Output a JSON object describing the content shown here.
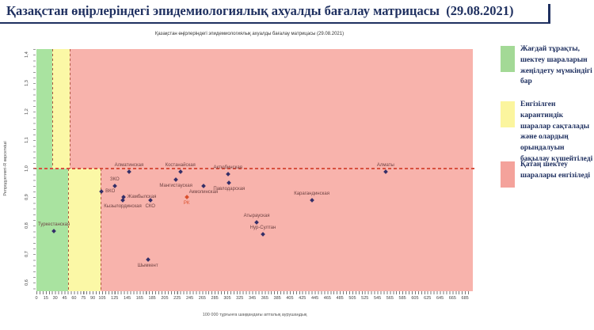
{
  "header": {
    "title": "Қазақстан өңірлеріндегі эпидемиологиялық ахуалды бағалау матрицасы",
    "date": "(29.08.2021)"
  },
  "chart": {
    "subtitle": "Қазақстан өңірлеріндегі эпидемиологиялық ахуалды бағалау матрицасы  (29.08.2021)",
    "x_axis_title": "100 000 тұрғынға шаққандағы апталық аурушаңдық",
    "y_axis_title": "Репродуктивті-R көрсеткіші"
  },
  "legend": {
    "items": [
      {
        "name": "stable-zone",
        "color": "#a3d996",
        "label": "Жағдай тұрақты, шектеу шараларын жеңілдету мүмкіндігі бар"
      },
      {
        "name": "quarantine-kept-zone",
        "color": "#fbf59e",
        "label": "Енгізілген карантиндік шаралар сақталады және олардың орындалуын бақылау күшейтіледі"
      },
      {
        "name": "strict-restrictions-zone",
        "color": "#f4a29b",
        "label": "Қатаң шектеу шаралары енгізіледі"
      }
    ]
  },
  "chart_data": {
    "type": "scatter",
    "title": "Қазақстан өңірлеріндегі эпидемиологиялық ахуалды бағалау матрицасы  (29.08.2021)",
    "xlabel": "100 000 тұрғынға шаққандағы апталық аурушаңдық",
    "ylabel": "Репродуктивті-R көрсеткіші",
    "xlim": [
      0,
      690
    ],
    "ylim": [
      0.57,
      1.42
    ],
    "grid": false,
    "legend_position": "right-outside",
    "ref_line_r": 1.0,
    "zones": {
      "top": {
        "green_max": 25,
        "yellow_max": 53
      },
      "bottom": {
        "green_max": 50,
        "yellow_max": 103
      }
    },
    "x_ticks": [
      0,
      15,
      30,
      45,
      60,
      75,
      90,
      105,
      125,
      145,
      165,
      185,
      205,
      225,
      245,
      265,
      285,
      305,
      325,
      345,
      365,
      385,
      405,
      425,
      445,
      465,
      485,
      505,
      525,
      545,
      565,
      585,
      605,
      625,
      645,
      665,
      685
    ],
    "y_ticks": [
      1.4,
      1.3,
      1.2,
      1.1,
      1.0,
      0.9,
      0.8,
      0.7,
      0.6
    ],
    "y_tick_labels": [
      "1,4",
      "1,3",
      "1,2",
      "1,1",
      "1,0",
      "0,9",
      "0,8",
      "0,7",
      "0,6"
    ],
    "points": [
      {
        "name": "Туркестанская",
        "x": 28,
        "r": 0.78,
        "label_pos": "above"
      },
      {
        "name": "ВКО",
        "x": 104,
        "r": 0.92,
        "label_pos": "right"
      },
      {
        "name": "ЗКО",
        "x": 125,
        "r": 0.94,
        "label_pos": "above"
      },
      {
        "name": "Жамбылская",
        "x": 139,
        "r": 0.9,
        "label_pos": "right"
      },
      {
        "name": "Кызылординская",
        "x": 138,
        "r": 0.89,
        "label_pos": "below"
      },
      {
        "name": "Алматинская",
        "x": 148,
        "r": 0.99,
        "label_pos": "above"
      },
      {
        "name": "СКО",
        "x": 182,
        "r": 0.89,
        "label_pos": "below"
      },
      {
        "name": "Шымкент",
        "x": 178,
        "r": 0.68,
        "label_pos": "below"
      },
      {
        "name": "Мангистауская",
        "x": 223,
        "r": 0.96,
        "label_pos": "below"
      },
      {
        "name": "Костанайская",
        "x": 230,
        "r": 0.99,
        "label_pos": "above"
      },
      {
        "name": "РК",
        "x": 240,
        "r": 0.9,
        "label_pos": "below",
        "highlight": true
      },
      {
        "name": "Акмолинская",
        "x": 267,
        "r": 0.94,
        "label_pos": "below"
      },
      {
        "name": "Актюбинская",
        "x": 306,
        "r": 0.98,
        "label_pos": "above"
      },
      {
        "name": "Павлодарская",
        "x": 308,
        "r": 0.95,
        "label_pos": "below"
      },
      {
        "name": "Атырауская",
        "x": 352,
        "r": 0.81,
        "label_pos": "above"
      },
      {
        "name": "Нур-Султан",
        "x": 362,
        "r": 0.77,
        "label_pos": "above"
      },
      {
        "name": "Карагандинская",
        "x": 440,
        "r": 0.89,
        "label_pos": "above"
      },
      {
        "name": "Алматы",
        "x": 558,
        "r": 0.99,
        "label_pos": "above"
      }
    ]
  },
  "colors": {
    "title_navy": "#1f3060",
    "zone_green": "#a9e3a0",
    "zone_yellow": "#fbf8a6",
    "zone_pink": "#f8b3ac",
    "ref_line": "#d8503f",
    "boundary_dash": "#b05a40",
    "point": "#342f68",
    "point_label": "#6e4343",
    "rk": "#d94f2b"
  }
}
